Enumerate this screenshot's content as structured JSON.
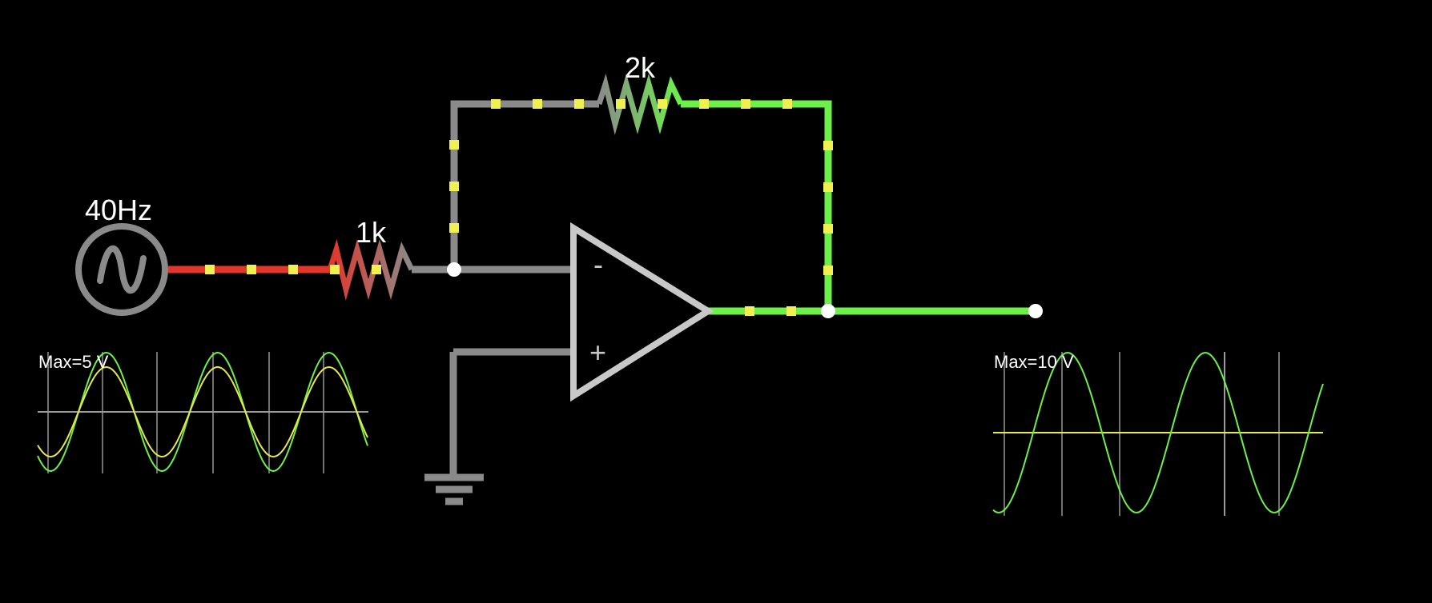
{
  "source": {
    "frequency_label": "40Hz"
  },
  "resistors": {
    "r_in_label": "1k",
    "r_fb_label": "2k"
  },
  "opamp": {
    "minus_label": "-",
    "plus_label": "+"
  },
  "scopes": {
    "left": {
      "max_label": "Max=5 V"
    },
    "right": {
      "max_label": "Max=10 V"
    }
  },
  "colors": {
    "background": "#000000",
    "wire_neutral": "#8a8a8a",
    "wire_negative": "#e2362a",
    "wire_positive": "#6df04a",
    "current_dot": "#f0f050",
    "scope_trace_in": "#e8e84a",
    "scope_trace_out": "#6df04a",
    "opamp_outline": "#c8c8c8",
    "scope_grid": "#707070"
  }
}
